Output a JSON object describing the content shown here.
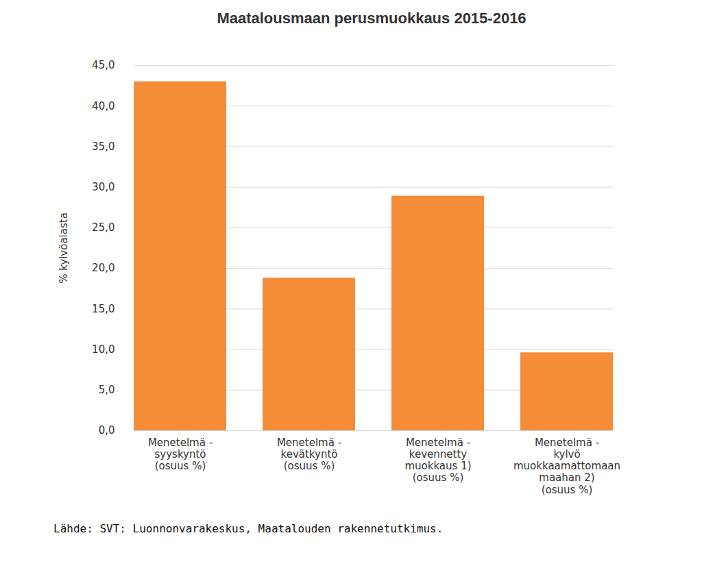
{
  "chart_data": {
    "type": "bar",
    "title": "Maatalousmaan perusmuokkaus 2015-2016",
    "categories": [
      "Menetelmä - syyskyntö (osuus %)",
      "Menetelmä - kevätkyntö (osuus %)",
      "Menetelmä - kevennetty muokkaus 1) (osuus %)",
      "Menetelmä - kylvö muokkaamattomaan maahan 2) (osuus %)"
    ],
    "values": [
      43.0,
      18.8,
      28.9,
      9.6
    ],
    "color": "#f58c38",
    "y_label": "% kylvöalasta",
    "caption": "Lähde: SVT: Luonnonvarakeskus, Maatalouden rakennetutkimus.",
    "ylim": [
      0,
      45
    ],
    "yticks": [
      {
        "value": 0,
        "label": "0,0"
      },
      {
        "value": 5,
        "label": "5,0"
      },
      {
        "value": 10,
        "label": "10,0"
      },
      {
        "value": 15,
        "label": "15,0"
      },
      {
        "value": 20,
        "label": "20,0"
      },
      {
        "value": 25,
        "label": "25,0"
      },
      {
        "value": 30,
        "label": "30,0"
      },
      {
        "value": 35,
        "label": "35,0"
      },
      {
        "value": 40,
        "label": "40,0"
      },
      {
        "value": 45,
        "label": "45,0"
      }
    ],
    "grid": true
  }
}
